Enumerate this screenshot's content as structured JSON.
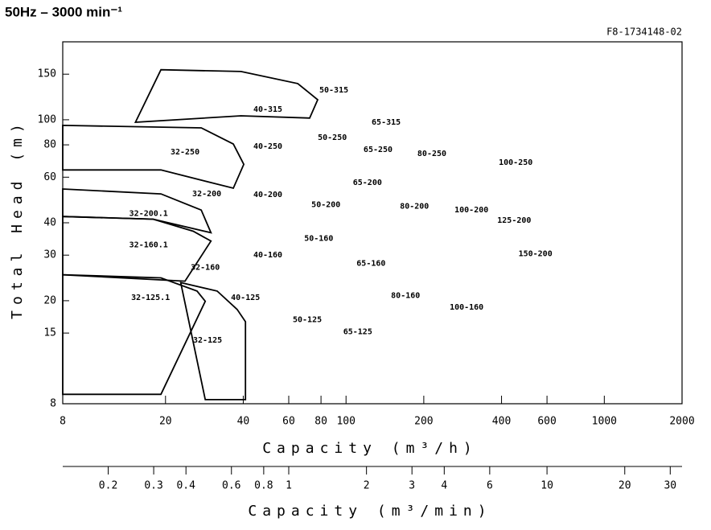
{
  "chart_data": {
    "type": "pump-envelope",
    "title": "50Hz – 3000 min⁻¹",
    "code": "F8-1734148-02",
    "xlabel": "Capacity (m³/h)",
    "ylabel": "Total Head (m)",
    "x2label": "Capacity (m³/min)",
    "log_x": true,
    "log_y": true,
    "xlim": [
      8,
      2000
    ],
    "ylim": [
      8,
      200
    ],
    "x2lim": [
      0.13333,
      33.333
    ],
    "xticks": [
      8,
      20,
      40,
      60,
      80,
      100,
      200,
      400,
      600,
      1000,
      2000
    ],
    "yticks": [
      8,
      15,
      20,
      30,
      40,
      60,
      80,
      100,
      150
    ],
    "x2ticks": [
      0.2,
      0.3,
      0.4,
      0.6,
      0.8,
      1,
      2,
      3,
      4,
      6,
      10,
      20,
      30
    ],
    "color": "#000000",
    "envelopes": [
      {
        "name": "32-125.1",
        "q": [
          8,
          19.2,
          26.5,
          28.5,
          19.2,
          8
        ],
        "h": [
          25.2,
          24.5,
          21.8,
          19.9,
          8.7,
          8.7
        ]
      },
      {
        "name": "32-125",
        "q": [
          22.9,
          31.7,
          37.9,
          40.8,
          40.8,
          28.5
        ],
        "h": [
          23.5,
          21.8,
          18.5,
          16.6,
          8.3,
          8.3
        ]
      },
      {
        "name": "32-160.1",
        "q": [
          8,
          17.9,
          25.6,
          30.0,
          23.8,
          8
        ],
        "h": [
          42.3,
          41.3,
          37.1,
          34.0,
          23.8,
          25.2
        ]
      },
      {
        "name": "32-200.1",
        "q": [
          8,
          19.2,
          27.5,
          30.0,
          17.9,
          8
        ],
        "h": [
          54.0,
          51.7,
          44.8,
          36.6,
          41.3,
          42.3
        ]
      },
      {
        "name": "32-250",
        "q": [
          8,
          27.5,
          36.6,
          40.2,
          36.6,
          19.2,
          8
        ],
        "h": [
          95.1,
          93.0,
          80.6,
          67.3,
          54.4,
          64.0,
          64.0
        ]
      },
      {
        "name": "40-315",
        "q": [
          15.3,
          19.2,
          39.2,
          65.0,
          77.7,
          72.3,
          39.2
        ],
        "h": [
          97.8,
          156,
          153.6,
          138,
          119.5,
          101.5,
          103.6
        ]
      }
    ],
    "pumps": [
      {
        "name": "32-125.1",
        "q": 17.5,
        "h": 20.6
      },
      {
        "name": "32-125",
        "q": 29.1,
        "h": 14.1
      },
      {
        "name": "32-160.1",
        "q": 17.2,
        "h": 32.9
      },
      {
        "name": "32-160",
        "q": 28.5,
        "h": 26.9
      },
      {
        "name": "32-200.1",
        "q": 17.2,
        "h": 43.5
      },
      {
        "name": "32-200",
        "q": 28.9,
        "h": 51.7
      },
      {
        "name": "32-250",
        "q": 23.8,
        "h": 75.0
      },
      {
        "name": "40-125",
        "q": 40.8,
        "h": 20.6
      },
      {
        "name": "40-160",
        "q": 49.8,
        "h": 30.0
      },
      {
        "name": "40-200",
        "q": 49.8,
        "h": 51.3
      },
      {
        "name": "40-250",
        "q": 49.8,
        "h": 78.9
      },
      {
        "name": "40-315",
        "q": 49.8,
        "h": 109.7
      },
      {
        "name": "50-125",
        "q": 70.8,
        "h": 16.9
      },
      {
        "name": "50-160",
        "q": 78.4,
        "h": 34.8
      },
      {
        "name": "50-200",
        "q": 83.6,
        "h": 47.0
      },
      {
        "name": "50-250",
        "q": 88.5,
        "h": 85.3
      },
      {
        "name": "50-315",
        "q": 89.7,
        "h": 130
      },
      {
        "name": "65-125",
        "q": 111,
        "h": 15.2
      },
      {
        "name": "65-160",
        "q": 125,
        "h": 27.9
      },
      {
        "name": "65-200",
        "q": 121,
        "h": 57.2
      },
      {
        "name": "65-250",
        "q": 133,
        "h": 76.6
      },
      {
        "name": "65-315",
        "q": 143,
        "h": 97.8
      },
      {
        "name": "80-160",
        "q": 170,
        "h": 20.9
      },
      {
        "name": "80-200",
        "q": 184,
        "h": 46.4
      },
      {
        "name": "80-250",
        "q": 215,
        "h": 74.0
      },
      {
        "name": "100-160",
        "q": 293,
        "h": 18.9
      },
      {
        "name": "100-200",
        "q": 306,
        "h": 44.8
      },
      {
        "name": "100-250",
        "q": 454,
        "h": 68.3
      },
      {
        "name": "125-200",
        "q": 448,
        "h": 40.8
      },
      {
        "name": "150-200",
        "q": 541,
        "h": 30.4
      }
    ]
  }
}
